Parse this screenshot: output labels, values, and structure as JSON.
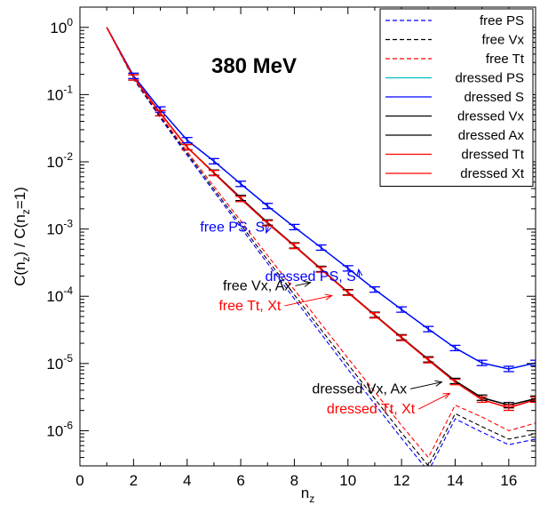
{
  "chart_data": {
    "type": "line",
    "title": "380 MeV",
    "xlabel": "n_z",
    "ylabel": "C(n_z) / C(n_z=1)",
    "xlim": [
      0,
      17
    ],
    "ylim": [
      3e-07,
      2
    ],
    "yscale": "log",
    "x_ticks": [
      0,
      2,
      4,
      6,
      8,
      10,
      12,
      14,
      16
    ],
    "y_ticks": [
      {
        "value": 1,
        "base": "10",
        "exp": "0"
      },
      {
        "value": 0.1,
        "base": "10",
        "exp": "-1"
      },
      {
        "value": 0.01,
        "base": "10",
        "exp": "-2"
      },
      {
        "value": 0.001,
        "base": "10",
        "exp": "-3"
      },
      {
        "value": 0.0001,
        "base": "10",
        "exp": "-4"
      },
      {
        "value": 1e-05,
        "base": "10",
        "exp": "-5"
      },
      {
        "value": 1e-06,
        "base": "10",
        "exp": "-6"
      }
    ],
    "legend_position": "top-right",
    "series": [
      {
        "name": "free PS",
        "color": "#0000ff",
        "dash": true,
        "x": [
          1,
          2,
          3,
          4,
          5,
          6,
          7,
          8,
          9,
          10,
          11,
          12,
          13,
          14,
          15,
          16,
          17
        ],
        "y": [
          1,
          0.17,
          0.045,
          0.0125,
          0.0036,
          0.00105,
          0.00031,
          9.2e-05,
          2.75e-05,
          8.2e-06,
          2.5e-06,
          7.7e-07,
          2.5e-07,
          1.5e-06,
          9.5e-07,
          6.2e-07,
          7.5e-07
        ]
      },
      {
        "name": "free Vx",
        "color": "#000000",
        "dash": true,
        "x": [
          1,
          2,
          3,
          4,
          5,
          6,
          7,
          8,
          9,
          10,
          11,
          12,
          13,
          14,
          15,
          16,
          17
        ],
        "y": [
          1,
          0.172,
          0.047,
          0.0133,
          0.0039,
          0.00116,
          0.000348,
          0.000105,
          3.18e-05,
          9.7e-06,
          3e-06,
          9.3e-07,
          3e-07,
          1.8e-06,
          1.15e-06,
          7.5e-07,
          9e-07
        ]
      },
      {
        "name": "free Tt",
        "color": "#ff0000",
        "dash": true,
        "x": [
          1,
          2,
          3,
          4,
          5,
          6,
          7,
          8,
          9,
          10,
          11,
          12,
          13,
          14,
          15,
          16,
          17
        ],
        "y": [
          1,
          0.175,
          0.049,
          0.0142,
          0.0043,
          0.00132,
          0.000405,
          0.000125,
          3.88e-05,
          1.2e-05,
          3.8e-06,
          1.2e-06,
          4e-07,
          2.4e-06,
          1.6e-06,
          1e-06,
          1.3e-06
        ]
      },
      {
        "name": "dressed PS",
        "color": "#00c0c0",
        "dash": false,
        "x": [
          1,
          2,
          3,
          4,
          5,
          6,
          7,
          8,
          9,
          10,
          11,
          12,
          13,
          14,
          15,
          16,
          17
        ],
        "y": [
          1,
          0.19,
          0.06,
          0.021,
          0.0102,
          0.0047,
          0.0022,
          0.00107,
          0.00053,
          0.00026,
          0.000126,
          6.35e-05,
          3.25e-05,
          1.7e-05,
          1.02e-05,
          8.3e-06,
          1.02e-05
        ]
      },
      {
        "name": "dressed S",
        "color": "#0000ff",
        "dash": false,
        "x": [
          1,
          2,
          3,
          4,
          5,
          6,
          7,
          8,
          9,
          10,
          11,
          12,
          13,
          14,
          15,
          16,
          17
        ],
        "y": [
          1,
          0.19,
          0.06,
          0.021,
          0.0102,
          0.0047,
          0.0022,
          0.00107,
          0.00053,
          0.00026,
          0.000126,
          6.35e-05,
          3.25e-05,
          1.7e-05,
          1.02e-05,
          8.3e-06,
          1.02e-05
        ]
      },
      {
        "name": "dressed Vx",
        "color": "#000000",
        "dash": false,
        "x": [
          1,
          2,
          3,
          4,
          5,
          6,
          7,
          8,
          9,
          10,
          11,
          12,
          13,
          14,
          15,
          16,
          17
        ],
        "y": [
          1,
          0.18,
          0.053,
          0.0165,
          0.0069,
          0.0029,
          0.00125,
          0.00057,
          0.000255,
          0.000115,
          5.3e-05,
          2.45e-05,
          1.15e-05,
          5.5e-06,
          3.1e-06,
          2.4e-06,
          3e-06
        ]
      },
      {
        "name": "dressed Ax",
        "color": "#000000",
        "dash": false,
        "x": [
          1,
          2,
          3,
          4,
          5,
          6,
          7,
          8,
          9,
          10,
          11,
          12,
          13,
          14,
          15,
          16,
          17
        ],
        "y": [
          1,
          0.18,
          0.053,
          0.0165,
          0.0069,
          0.0029,
          0.00125,
          0.00057,
          0.000255,
          0.000115,
          5.3e-05,
          2.45e-05,
          1.15e-05,
          5.5e-06,
          3.1e-06,
          2.4e-06,
          3e-06
        ]
      },
      {
        "name": "dressed Tt",
        "color": "#ff0000",
        "dash": false,
        "x": [
          1,
          2,
          3,
          4,
          5,
          6,
          7,
          8,
          9,
          10,
          11,
          12,
          13,
          14,
          15,
          16,
          17
        ],
        "y": [
          1,
          0.18,
          0.053,
          0.0165,
          0.0068,
          0.0028,
          0.00122,
          0.00056,
          0.00025,
          0.000113,
          5.2e-05,
          2.4e-05,
          1.12e-05,
          5.3e-06,
          2.9e-06,
          2.2e-06,
          2.9e-06
        ]
      },
      {
        "name": "dressed Xt",
        "color": "#ff0000",
        "dash": false,
        "x": [
          1,
          2,
          3,
          4,
          5,
          6,
          7,
          8,
          9,
          10,
          11,
          12,
          13,
          14,
          15,
          16,
          17
        ],
        "y": [
          1,
          0.18,
          0.053,
          0.0165,
          0.0068,
          0.0028,
          0.00122,
          0.00056,
          0.00025,
          0.000113,
          5.2e-05,
          2.4e-05,
          1.12e-05,
          5.3e-06,
          2.9e-06,
          2.2e-06,
          2.9e-06
        ]
      }
    ],
    "error_bars": [
      {
        "series": "dressed S",
        "color": "#0000ff",
        "x": [
          2,
          3,
          4,
          5,
          6,
          7,
          8,
          9,
          10,
          11,
          12,
          13,
          14,
          15,
          16,
          17
        ],
        "y": [
          0.19,
          0.06,
          0.021,
          0.0102,
          0.0047,
          0.0022,
          0.00107,
          0.00053,
          0.00026,
          0.000126,
          6.35e-05,
          3.25e-05,
          1.7e-05,
          1.02e-05,
          8.3e-06,
          1.02e-05
        ]
      },
      {
        "series": "dressed Vx",
        "color": "#000000",
        "x": [
          2,
          3,
          4,
          5,
          6,
          7,
          8,
          9,
          10,
          11,
          12,
          13,
          14,
          15,
          16,
          17
        ],
        "y": [
          0.18,
          0.053,
          0.0165,
          0.0069,
          0.0029,
          0.00125,
          0.00057,
          0.000255,
          0.000115,
          5.3e-05,
          2.45e-05,
          1.15e-05,
          5.5e-06,
          3.1e-06,
          2.4e-06,
          3e-06
        ]
      },
      {
        "series": "dressed Tt",
        "color": "#ff0000",
        "x": [
          2,
          3,
          4,
          5,
          6,
          7,
          8,
          9,
          10,
          11,
          12,
          13,
          14,
          15,
          16,
          17
        ],
        "y": [
          0.18,
          0.053,
          0.0165,
          0.0068,
          0.0028,
          0.00122,
          0.00056,
          0.00025,
          0.000113,
          5.2e-05,
          2.4e-05,
          1.12e-05,
          5.3e-06,
          2.9e-06,
          2.2e-06,
          2.9e-06
        ]
      }
    ],
    "annotations": [
      {
        "text": "free PS, S",
        "color": "#0000ff",
        "at_x": 6.9,
        "at_y": 0.00092,
        "tip_x": 6.95,
        "tip_y": 0.00088
      },
      {
        "text": "dressed PS, S",
        "color": "#0000ff",
        "at_x": 10.3,
        "at_y": 0.00017,
        "tip_x": 10.4,
        "tip_y": 0.00025
      },
      {
        "text": "free Vx, Ax",
        "color": "#000000",
        "at_x": 7.9,
        "at_y": 0.000123,
        "tip_x": 8.6,
        "tip_y": 0.00016
      },
      {
        "text": "free Tt, Xt",
        "color": "#ff0000",
        "at_x": 7.5,
        "at_y": 6.2e-05,
        "tip_x": 9.4,
        "tip_y": 0.000102
      },
      {
        "text": "dressed Vx, Ax",
        "color": "#000000",
        "at_x": 12.2,
        "at_y": 3.6e-06,
        "tip_x": 13.5,
        "tip_y": 5.3e-06
      },
      {
        "text": "dressed Tt, Xt",
        "color": "#ff0000",
        "at_x": 12.5,
        "at_y": 1.8e-06,
        "tip_x": 13.8,
        "tip_y": 3.6e-06
      }
    ]
  }
}
